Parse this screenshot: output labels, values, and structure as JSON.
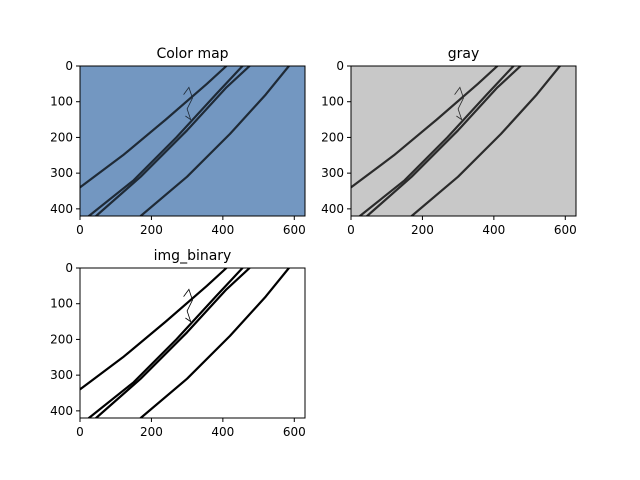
{
  "chart_data": [
    {
      "type": "image",
      "title": "Color map",
      "background": "#7397c1",
      "stroke": "#1f2a36",
      "xlim": [
        0,
        630
      ],
      "ylim": [
        420,
        0
      ],
      "xticks": [
        0,
        200,
        400,
        600
      ],
      "yticks": [
        0,
        100,
        200,
        300,
        400
      ],
      "lines": [
        {
          "points": [
            [
              0,
              340
            ],
            [
              120,
              250
            ],
            [
              240,
              150
            ],
            [
              355,
              50
            ],
            [
              410,
              0
            ]
          ]
        },
        {
          "points": [
            [
              25,
              420
            ],
            [
              150,
              320
            ],
            [
              270,
              200
            ],
            [
              380,
              80
            ],
            [
              455,
              0
            ]
          ]
        },
        {
          "points": [
            [
              45,
              420
            ],
            [
              170,
              310
            ],
            [
              300,
              180
            ],
            [
              410,
              60
            ],
            [
              475,
              0
            ]
          ]
        },
        {
          "points": [
            [
              170,
              420
            ],
            [
              300,
              310
            ],
            [
              420,
              190
            ],
            [
              520,
              80
            ],
            [
              585,
              0
            ]
          ]
        }
      ],
      "tangle": {
        "points": [
          [
            290,
            80
          ],
          [
            305,
            60
          ],
          [
            315,
            90
          ],
          [
            300,
            120
          ],
          [
            310,
            150
          ],
          [
            295,
            140
          ]
        ]
      }
    },
    {
      "type": "image",
      "title": "gray",
      "background": "#c8c8c8",
      "stroke": "#2b2b2b",
      "xlim": [
        0,
        630
      ],
      "ylim": [
        420,
        0
      ],
      "xticks": [
        0,
        200,
        400,
        600
      ],
      "yticks": [
        0,
        100,
        200,
        300,
        400
      ],
      "lines": [
        {
          "points": [
            [
              0,
              340
            ],
            [
              120,
              250
            ],
            [
              240,
              150
            ],
            [
              355,
              50
            ],
            [
              410,
              0
            ]
          ]
        },
        {
          "points": [
            [
              25,
              420
            ],
            [
              150,
              320
            ],
            [
              270,
              200
            ],
            [
              380,
              80
            ],
            [
              455,
              0
            ]
          ]
        },
        {
          "points": [
            [
              45,
              420
            ],
            [
              170,
              310
            ],
            [
              300,
              180
            ],
            [
              410,
              60
            ],
            [
              475,
              0
            ]
          ]
        },
        {
          "points": [
            [
              170,
              420
            ],
            [
              300,
              310
            ],
            [
              420,
              190
            ],
            [
              520,
              80
            ],
            [
              585,
              0
            ]
          ]
        }
      ],
      "tangle": {
        "points": [
          [
            290,
            80
          ],
          [
            305,
            60
          ],
          [
            315,
            90
          ],
          [
            300,
            120
          ],
          [
            310,
            150
          ],
          [
            295,
            140
          ]
        ]
      }
    },
    {
      "type": "image",
      "title": "img_binary",
      "background": "#ffffff",
      "stroke": "#000000",
      "xlim": [
        0,
        630
      ],
      "ylim": [
        420,
        0
      ],
      "xticks": [
        0,
        200,
        400,
        600
      ],
      "yticks": [
        0,
        100,
        200,
        300,
        400
      ],
      "lines": [
        {
          "points": [
            [
              0,
              340
            ],
            [
              120,
              250
            ],
            [
              240,
              150
            ],
            [
              355,
              50
            ],
            [
              410,
              0
            ]
          ]
        },
        {
          "points": [
            [
              25,
              420
            ],
            [
              150,
              320
            ],
            [
              270,
              200
            ],
            [
              380,
              80
            ],
            [
              455,
              0
            ]
          ]
        },
        {
          "points": [
            [
              45,
              420
            ],
            [
              170,
              310
            ],
            [
              300,
              180
            ],
            [
              410,
              60
            ],
            [
              475,
              0
            ]
          ]
        },
        {
          "points": [
            [
              170,
              420
            ],
            [
              300,
              310
            ],
            [
              420,
              190
            ],
            [
              520,
              80
            ],
            [
              585,
              0
            ]
          ]
        }
      ],
      "tangle": {
        "points": [
          [
            290,
            80
          ],
          [
            305,
            60
          ],
          [
            315,
            90
          ],
          [
            300,
            120
          ],
          [
            310,
            150
          ],
          [
            295,
            140
          ]
        ]
      }
    }
  ]
}
